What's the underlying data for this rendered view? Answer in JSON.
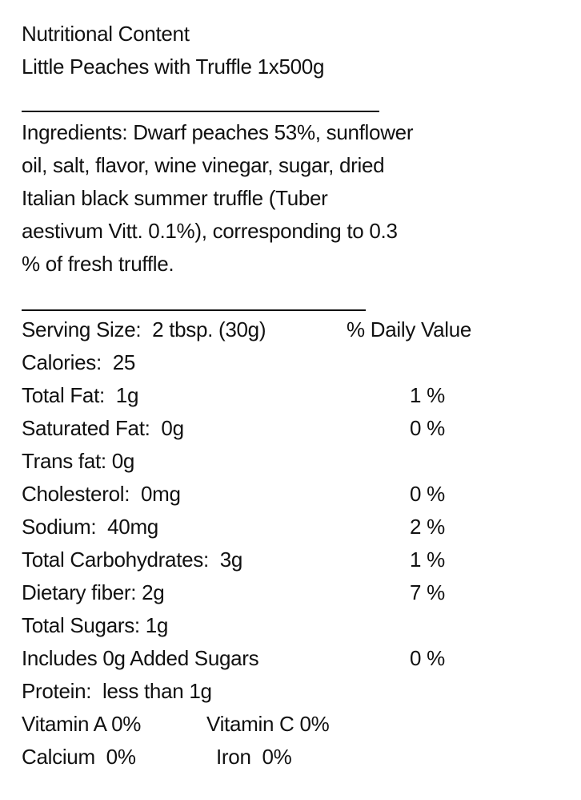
{
  "title": "Nutritional Content",
  "product": "Little Peaches with Truffle 1x500g",
  "ingredients": [
    "Ingredients: Dwarf peaches 53%, sunflower",
    "oil, salt, flavor, wine vinegar, sugar, dried",
    "Italian black summer truffle (Tuber",
    "aestivum Vitt. 0.1%), corresponding to 0.3",
    "% of fresh truffle."
  ],
  "serving": {
    "label": "Serving Size:  2 tbsp. (30g)",
    "dv_header": "% Daily Value"
  },
  "rows": [
    {
      "label": "Calories:  25"
    },
    {
      "label": "Total Fat:  1g",
      "dv": "1 %"
    },
    {
      "label": "Saturated Fat:  0g",
      "dv": "0 %"
    },
    {
      "label": "Trans fat: 0g"
    },
    {
      "label": "Cholesterol:  0mg",
      "dv": "0 %"
    },
    {
      "label": "Sodium:  40mg",
      "dv": "2 %"
    },
    {
      "label": "Total Carbohydrates:  3g",
      "dv": "1 %"
    },
    {
      "label": "Dietary fiber: 2g",
      "dv": "7 %"
    },
    {
      "label": "Total Sugars: 1g"
    },
    {
      "label": "Includes 0g Added Sugars",
      "dv": "0 %"
    },
    {
      "label": "Protein:  less than 1g"
    }
  ],
  "vitamins": [
    [
      "Vitamin A 0%",
      "Vitamin C 0%"
    ],
    [
      "Calcium  0%",
      "Iron  0%"
    ]
  ]
}
